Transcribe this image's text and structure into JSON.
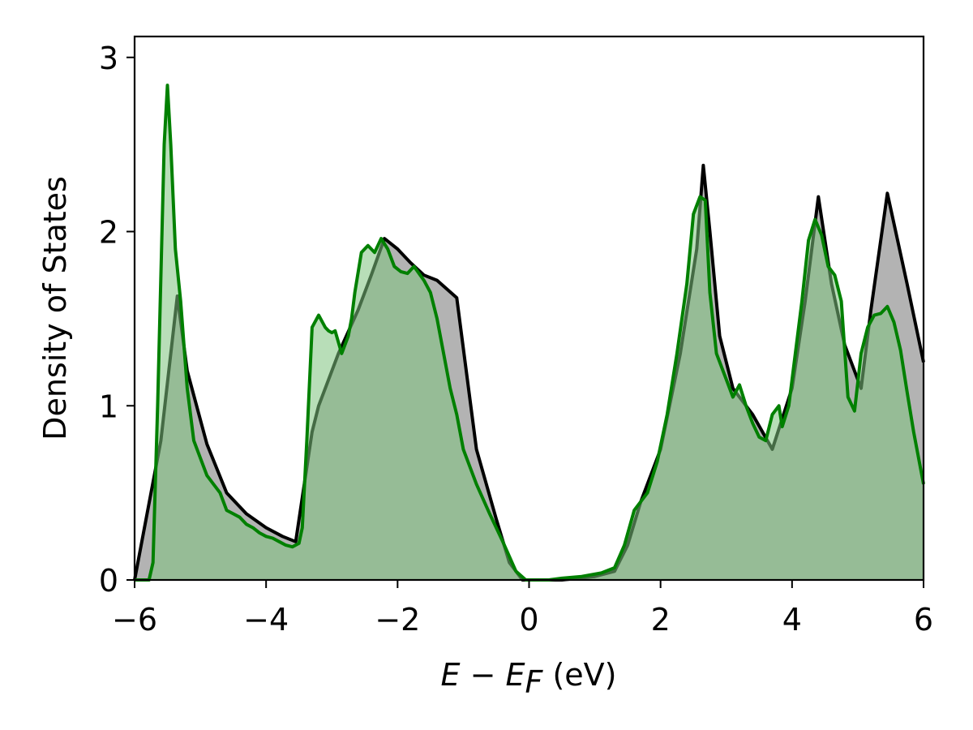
{
  "chart_data": {
    "type": "area",
    "title": "",
    "xlabel": "E − E_F (eV)",
    "xlabel_parts": {
      "var_e": "E",
      "minus": " − ",
      "var_ef": "E",
      "sub": "F",
      "unit": " (eV)"
    },
    "ylabel": "Density of States",
    "xlim": [
      -6,
      6
    ],
    "ylim": [
      0,
      3.12
    ],
    "xticks": [
      -6,
      -4,
      -2,
      0,
      2,
      4,
      6
    ],
    "xtick_labels": [
      "−6",
      "−4",
      "−2",
      "0",
      "2",
      "4",
      "6"
    ],
    "yticks": [
      0,
      1,
      2,
      3
    ],
    "ytick_labels": [
      "0",
      "1",
      "2",
      "3"
    ],
    "grid": false,
    "legend": "none",
    "series": [
      {
        "color": "#000000",
        "fill": "#b3b3b3",
        "x": [
          -6.0,
          -5.6,
          -5.35,
          -5.2,
          -4.9,
          -4.6,
          -4.3,
          -4.0,
          -3.75,
          -3.55,
          -3.3,
          -3.2,
          -2.9,
          -2.6,
          -2.4,
          -2.2,
          -2.0,
          -1.8,
          -1.6,
          -1.4,
          -1.1,
          -0.8,
          -0.5,
          -0.3,
          -0.1,
          0.0,
          0.5,
          1.0,
          1.3,
          1.5,
          1.7,
          2.0,
          2.3,
          2.55,
          2.65,
          2.75,
          2.9,
          3.1,
          3.4,
          3.7,
          4.0,
          4.2,
          4.4,
          4.6,
          4.8,
          5.05,
          5.2,
          5.45,
          5.75,
          6.0
        ],
        "y": [
          0.0,
          0.8,
          1.63,
          1.2,
          0.78,
          0.5,
          0.38,
          0.3,
          0.25,
          0.22,
          0.85,
          1.0,
          1.3,
          1.55,
          1.75,
          1.96,
          1.9,
          1.82,
          1.75,
          1.72,
          1.62,
          0.75,
          0.35,
          0.1,
          0.0,
          0.0,
          0.0,
          0.02,
          0.05,
          0.2,
          0.45,
          0.75,
          1.3,
          1.9,
          2.38,
          2.0,
          1.4,
          1.1,
          0.95,
          0.75,
          1.1,
          1.6,
          2.2,
          1.7,
          1.35,
          1.1,
          1.55,
          2.22,
          1.7,
          1.25
        ]
      },
      {
        "color": "#008000",
        "fill": "#7ec27e",
        "x": [
          -6.0,
          -5.78,
          -5.72,
          -5.65,
          -5.55,
          -5.5,
          -5.45,
          -5.38,
          -5.3,
          -5.2,
          -5.1,
          -5.0,
          -4.9,
          -4.8,
          -4.7,
          -4.6,
          -4.5,
          -4.4,
          -4.3,
          -4.2,
          -4.1,
          -4.0,
          -3.9,
          -3.8,
          -3.7,
          -3.6,
          -3.5,
          -3.45,
          -3.38,
          -3.3,
          -3.2,
          -3.1,
          -3.05,
          -3.0,
          -2.95,
          -2.85,
          -2.75,
          -2.7,
          -2.65,
          -2.55,
          -2.45,
          -2.35,
          -2.25,
          -2.15,
          -2.05,
          -1.95,
          -1.85,
          -1.75,
          -1.6,
          -1.5,
          -1.4,
          -1.3,
          -1.2,
          -1.1,
          -1.0,
          -0.8,
          -0.6,
          -0.4,
          -0.2,
          -0.05,
          0.1,
          0.3,
          0.5,
          0.8,
          1.1,
          1.3,
          1.45,
          1.6,
          1.8,
          1.95,
          2.1,
          2.25,
          2.4,
          2.5,
          2.6,
          2.68,
          2.75,
          2.85,
          3.0,
          3.1,
          3.2,
          3.3,
          3.4,
          3.5,
          3.6,
          3.7,
          3.8,
          3.85,
          3.95,
          4.05,
          4.15,
          4.25,
          4.35,
          4.45,
          4.55,
          4.65,
          4.75,
          4.85,
          4.95,
          5.05,
          5.15,
          5.25,
          5.35,
          5.45,
          5.55,
          5.65,
          5.75,
          5.85,
          6.0
        ],
        "y": [
          0.0,
          0.0,
          0.1,
          1.0,
          2.5,
          2.84,
          2.5,
          1.9,
          1.6,
          1.1,
          0.8,
          0.7,
          0.6,
          0.55,
          0.5,
          0.4,
          0.38,
          0.36,
          0.32,
          0.3,
          0.27,
          0.25,
          0.24,
          0.22,
          0.2,
          0.19,
          0.21,
          0.3,
          0.8,
          1.45,
          1.52,
          1.45,
          1.43,
          1.42,
          1.43,
          1.3,
          1.4,
          1.5,
          1.65,
          1.88,
          1.92,
          1.88,
          1.96,
          1.9,
          1.8,
          1.77,
          1.76,
          1.8,
          1.72,
          1.65,
          1.5,
          1.3,
          1.1,
          0.95,
          0.75,
          0.55,
          0.38,
          0.22,
          0.05,
          0.0,
          0.0,
          0.0,
          0.01,
          0.02,
          0.04,
          0.07,
          0.2,
          0.4,
          0.5,
          0.68,
          0.95,
          1.3,
          1.7,
          2.1,
          2.2,
          2.18,
          1.65,
          1.3,
          1.15,
          1.05,
          1.12,
          1.0,
          0.9,
          0.82,
          0.8,
          0.95,
          1.0,
          0.88,
          1.0,
          1.3,
          1.6,
          1.95,
          2.07,
          1.98,
          1.8,
          1.75,
          1.6,
          1.05,
          0.97,
          1.3,
          1.45,
          1.52,
          1.53,
          1.57,
          1.48,
          1.32,
          1.08,
          0.85,
          0.55
        ]
      }
    ]
  }
}
